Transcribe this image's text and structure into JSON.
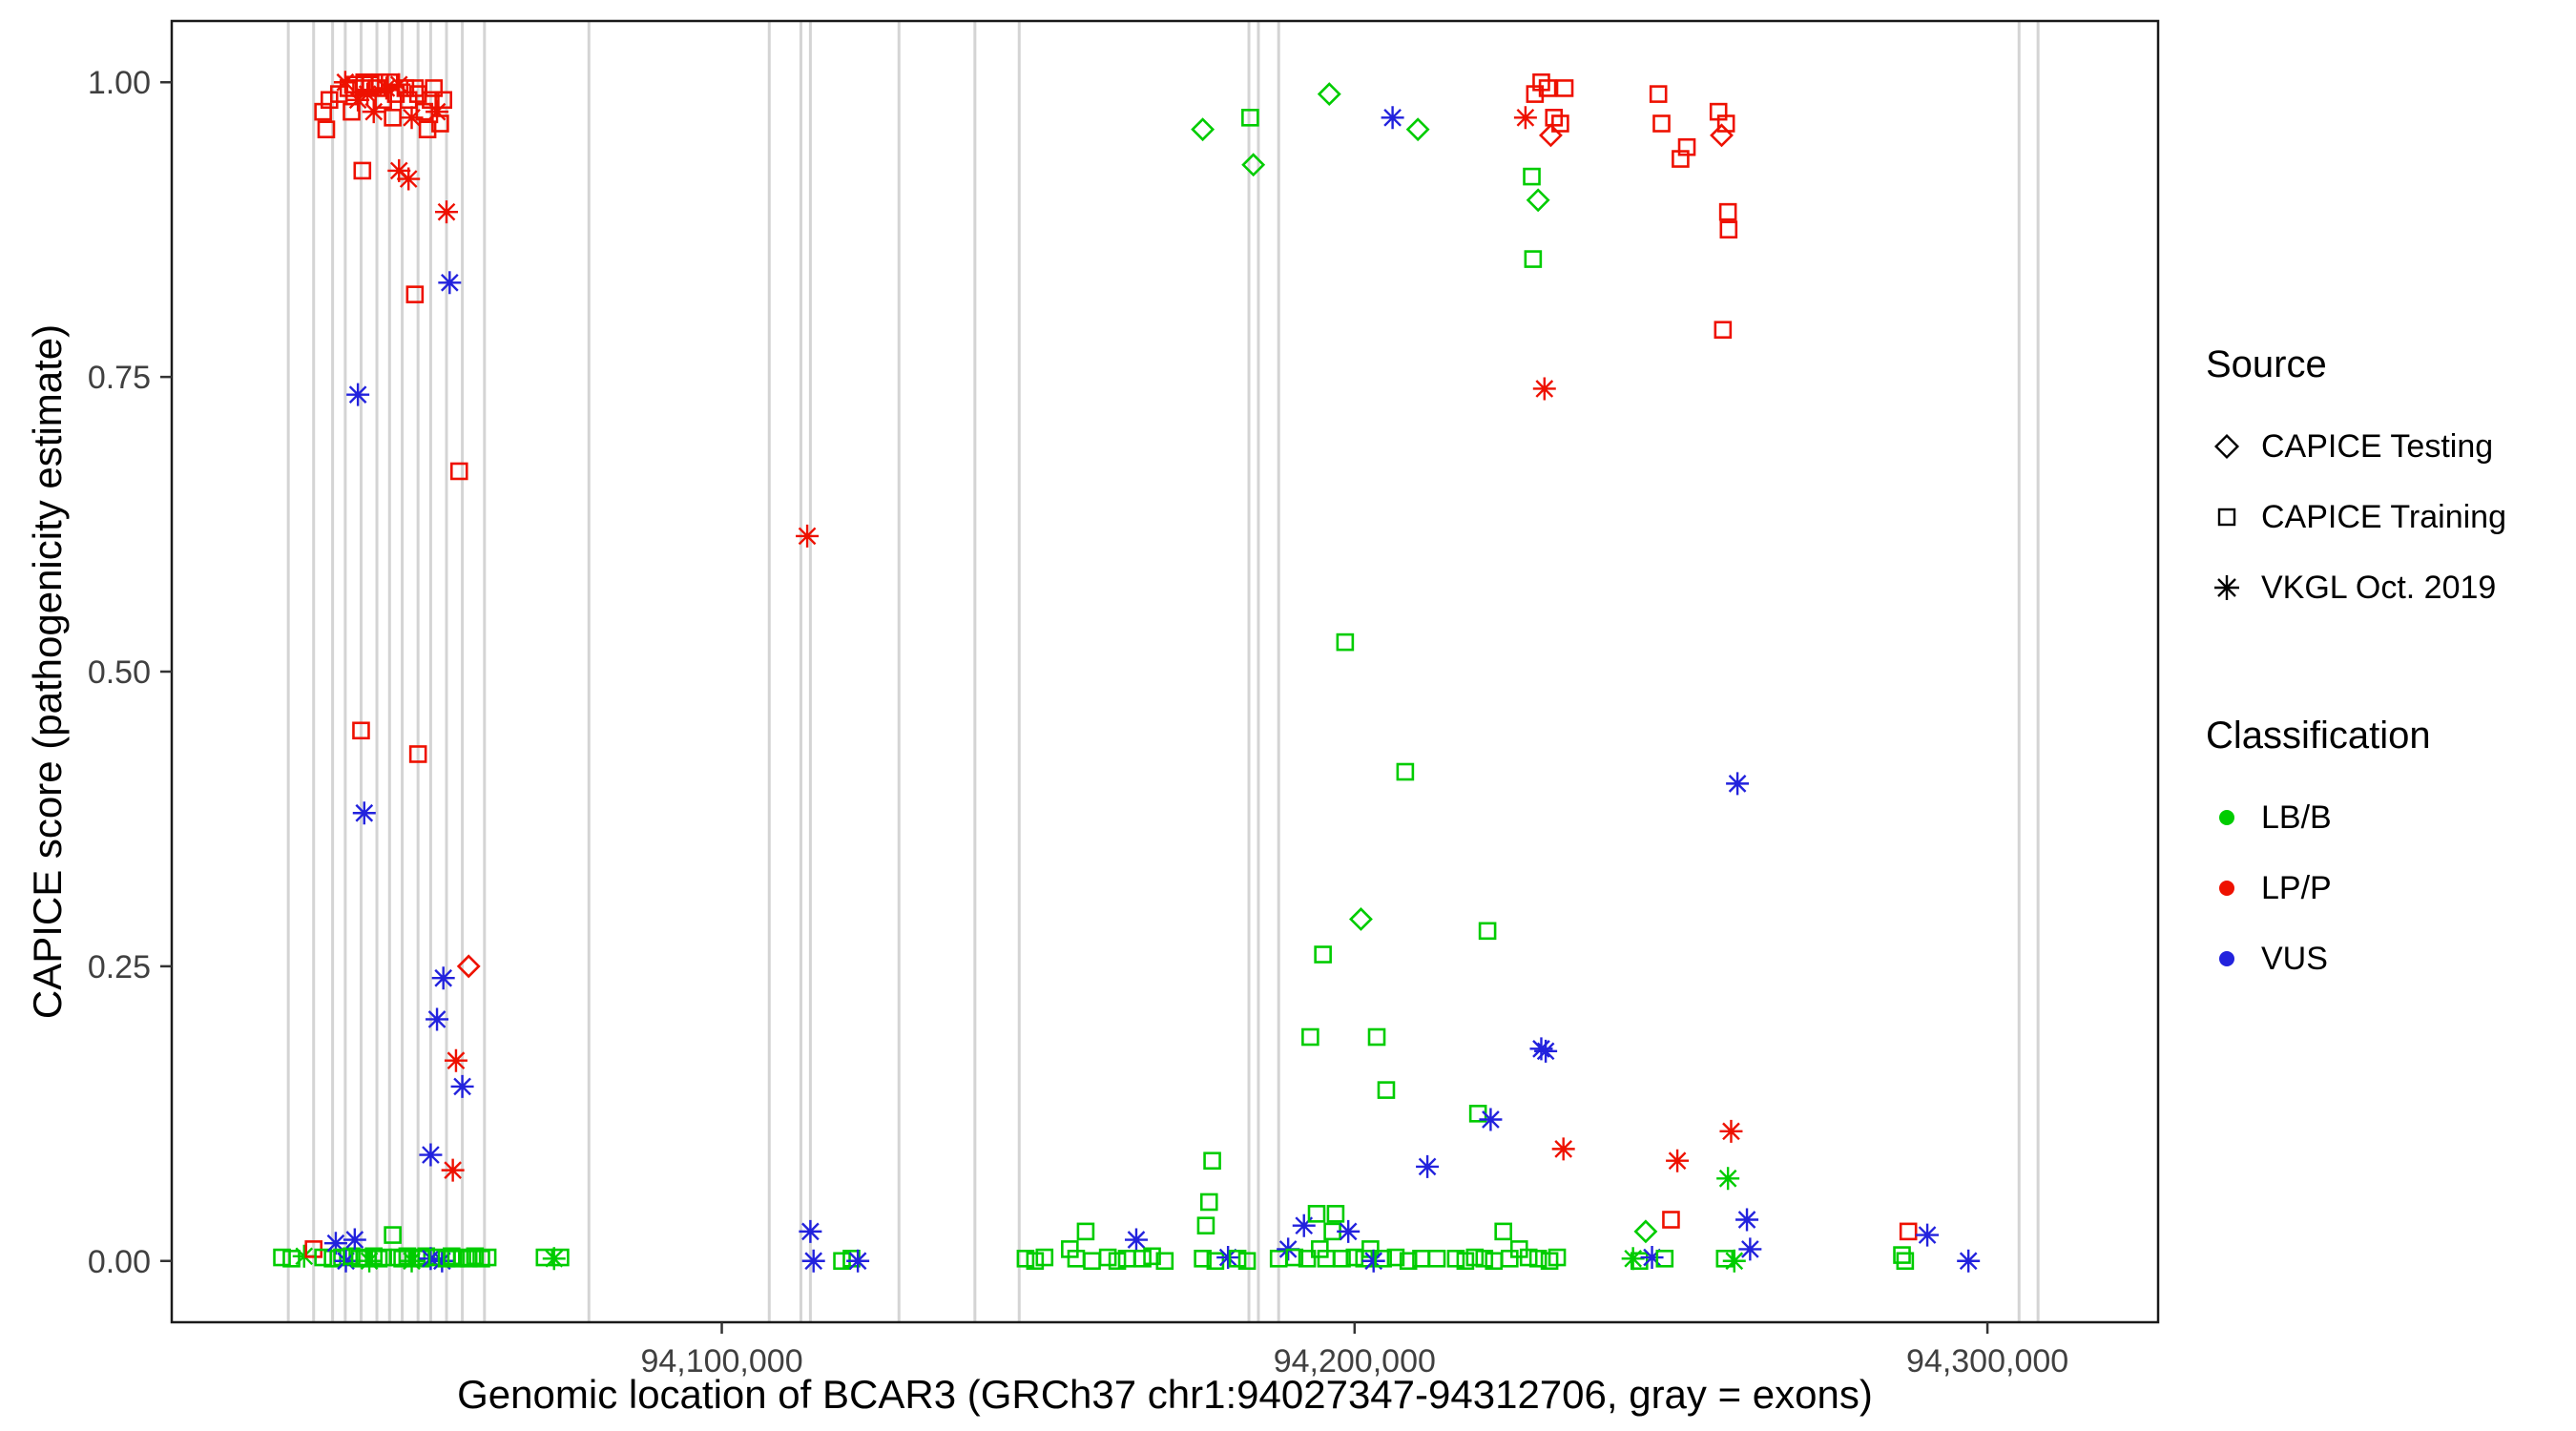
{
  "figure": {
    "x_axis_title": "Genomic location of BCAR3 (GRCh37 chr1:94027347-94312706, gray = exons)",
    "y_axis_title": "CAPICE score (pathogenicity estimate)"
  },
  "legend": {
    "source": {
      "title": "Source",
      "items": [
        "CAPICE Testing",
        "CAPICE Training",
        "VKGL Oct. 2019"
      ]
    },
    "classification": {
      "title": "Classification",
      "items": [
        "LB/B",
        "LP/P",
        "VUS"
      ]
    }
  },
  "colors": {
    "lbb": "#00CC00",
    "lpp": "#EE1100",
    "vus": "#2222DD",
    "exon": "#D4D4D4",
    "tick_text": "#404040",
    "panel_border": "#1a1a1a"
  },
  "chart_data": {
    "type": "scatter",
    "title": "",
    "xlabel": "Genomic location of BCAR3 (GRCh37 chr1:94027347-94312706, gray = exons)",
    "ylabel": "CAPICE score (pathogenicity estimate)",
    "grid": false,
    "legend_position": "right",
    "x_domain": [
      94013079,
      94326974
    ],
    "y_domain": [
      -0.052,
      1.052
    ],
    "x_ticks": [
      {
        "value": 94100000,
        "label": "94,100,000"
      },
      {
        "value": 94200000,
        "label": "94,200,000"
      },
      {
        "value": 94300000,
        "label": "94,300,000"
      }
    ],
    "y_ticks": [
      {
        "value": 0.0,
        "label": "0.00"
      },
      {
        "value": 0.25,
        "label": "0.25"
      },
      {
        "value": 0.5,
        "label": "0.50"
      },
      {
        "value": 0.75,
        "label": "0.75"
      },
      {
        "value": 1.0,
        "label": "1.00"
      }
    ],
    "point_format": "each point is [genomic_position, capice_score, source_code, class_code]",
    "source_codes": {
      "T": "CAPICE Testing",
      "R": "CAPICE Training",
      "V": "VKGL Oct. 2019"
    },
    "source_markers": {
      "CAPICE Testing": "diamond",
      "CAPICE Training": "square",
      "VKGL Oct. 2019": "asterisk"
    },
    "class_codes": {
      "B": "LB/B",
      "P": "LP/P",
      "U": "VUS"
    },
    "class_colors": {
      "LB/B": "#00CC00",
      "LP/P": "#EE1100",
      "VUS": "#2222DD"
    },
    "exons": [
      94031500,
      94035500,
      94038500,
      94040500,
      94043000,
      94045500,
      94047500,
      94049500,
      94052000,
      94054000,
      94056500,
      94059000,
      94062500,
      94079000,
      94107500,
      94112500,
      94114000,
      94128000,
      94140000,
      94147000,
      94183300,
      94184800,
      94188000,
      94305000,
      94308000
    ],
    "points": [
      [
        94037000,
        0.975,
        "R",
        "P"
      ],
      [
        94037500,
        0.96,
        "R",
        "P"
      ],
      [
        94038000,
        0.985,
        "R",
        "P"
      ],
      [
        94039500,
        0.99,
        "R",
        "P"
      ],
      [
        94040500,
        1.0,
        "V",
        "P"
      ],
      [
        94041000,
        0.995,
        "R",
        "P"
      ],
      [
        94041500,
        0.975,
        "R",
        "P"
      ],
      [
        94042000,
        0.998,
        "R",
        "P"
      ],
      [
        94042500,
        0.985,
        "V",
        "P"
      ],
      [
        94043000,
        0.995,
        "R",
        "P"
      ],
      [
        94043500,
        1.0,
        "R",
        "P"
      ],
      [
        94044000,
        0.99,
        "V",
        "P"
      ],
      [
        94044500,
        0.998,
        "R",
        "P"
      ],
      [
        94045000,
        0.975,
        "V",
        "P"
      ],
      [
        94045500,
        0.995,
        "R",
        "P"
      ],
      [
        94046000,
        1.0,
        "R",
        "P"
      ],
      [
        94046500,
        0.985,
        "R",
        "P"
      ],
      [
        94047000,
        0.995,
        "V",
        "P"
      ],
      [
        94047500,
        1.0,
        "R",
        "P"
      ],
      [
        94048000,
        0.97,
        "R",
        "P"
      ],
      [
        94048500,
        0.99,
        "R",
        "P"
      ],
      [
        94049000,
        0.998,
        "V",
        "P"
      ],
      [
        94050000,
        0.995,
        "R",
        "P"
      ],
      [
        94050500,
        0.985,
        "R",
        "P"
      ],
      [
        94051000,
        0.97,
        "V",
        "P"
      ],
      [
        94051500,
        0.995,
        "R",
        "P"
      ],
      [
        94052000,
        0.99,
        "R",
        "P"
      ],
      [
        94053000,
        0.975,
        "R",
        "P"
      ],
      [
        94053500,
        0.96,
        "R",
        "P"
      ],
      [
        94054000,
        0.985,
        "R",
        "P"
      ],
      [
        94054500,
        0.995,
        "R",
        "P"
      ],
      [
        94055000,
        0.975,
        "V",
        "P"
      ],
      [
        94055500,
        0.965,
        "R",
        "P"
      ],
      [
        94056000,
        0.985,
        "R",
        "P"
      ],
      [
        94043200,
        0.925,
        "R",
        "P"
      ],
      [
        94049000,
        0.925,
        "V",
        "P"
      ],
      [
        94050500,
        0.918,
        "V",
        "P"
      ],
      [
        94051500,
        0.82,
        "R",
        "P"
      ],
      [
        94056500,
        0.89,
        "V",
        "P"
      ],
      [
        94042500,
        0.735,
        "V",
        "U"
      ],
      [
        94057000,
        0.83,
        "V",
        "U"
      ],
      [
        94058500,
        0.67,
        "R",
        "P"
      ],
      [
        94043000,
        0.45,
        "R",
        "P"
      ],
      [
        94052000,
        0.43,
        "R",
        "P"
      ],
      [
        94043500,
        0.38,
        "V",
        "U"
      ],
      [
        94060000,
        0.25,
        "T",
        "P"
      ],
      [
        94056000,
        0.24,
        "V",
        "U"
      ],
      [
        94055000,
        0.205,
        "V",
        "U"
      ],
      [
        94058000,
        0.17,
        "V",
        "P"
      ],
      [
        94059000,
        0.148,
        "V",
        "U"
      ],
      [
        94054000,
        0.09,
        "V",
        "U"
      ],
      [
        94057500,
        0.077,
        "V",
        "P"
      ],
      [
        94030500,
        0.003,
        "R",
        "B"
      ],
      [
        94032000,
        0.002,
        "R",
        "B"
      ],
      [
        94034000,
        0.004,
        "V",
        "B"
      ],
      [
        94035500,
        0.01,
        "R",
        "P"
      ],
      [
        94037000,
        0.003,
        "R",
        "B"
      ],
      [
        94038500,
        0.002,
        "R",
        "B"
      ],
      [
        94039000,
        0.015,
        "V",
        "U"
      ],
      [
        94040000,
        0.003,
        "R",
        "B"
      ],
      [
        94040600,
        0.0,
        "V",
        "U"
      ],
      [
        94041500,
        0.004,
        "R",
        "B"
      ],
      [
        94042000,
        0.018,
        "V",
        "U"
      ],
      [
        94042800,
        0.002,
        "R",
        "B"
      ],
      [
        94043500,
        0.003,
        "R",
        "B"
      ],
      [
        94044300,
        0.0,
        "V",
        "B"
      ],
      [
        94045000,
        0.004,
        "R",
        "B"
      ],
      [
        94045800,
        0.002,
        "R",
        "B"
      ],
      [
        94046500,
        0.003,
        "R",
        "B"
      ],
      [
        94048000,
        0.022,
        "R",
        "B"
      ],
      [
        94048800,
        0.003,
        "R",
        "B"
      ],
      [
        94049500,
        0.002,
        "R",
        "B"
      ],
      [
        94050300,
        0.004,
        "R",
        "B"
      ],
      [
        94051000,
        0.0,
        "V",
        "B"
      ],
      [
        94051800,
        0.003,
        "R",
        "B"
      ],
      [
        94052500,
        0.002,
        "R",
        "B"
      ],
      [
        94053300,
        0.004,
        "R",
        "B"
      ],
      [
        94054000,
        0.002,
        "V",
        "U"
      ],
      [
        94055000,
        0.003,
        "R",
        "B"
      ],
      [
        94055800,
        0.0,
        "V",
        "U"
      ],
      [
        94056500,
        0.002,
        "R",
        "B"
      ],
      [
        94057300,
        0.004,
        "R",
        "B"
      ],
      [
        94058000,
        0.002,
        "R",
        "B"
      ],
      [
        94059000,
        0.003,
        "R",
        "B"
      ],
      [
        94060000,
        0.002,
        "R",
        "B"
      ],
      [
        94061000,
        0.004,
        "R",
        "B"
      ],
      [
        94062000,
        0.002,
        "R",
        "B"
      ],
      [
        94063000,
        0.003,
        "R",
        "B"
      ],
      [
        94072000,
        0.003,
        "R",
        "B"
      ],
      [
        94073500,
        0.002,
        "V",
        "B"
      ],
      [
        94074500,
        0.003,
        "R",
        "B"
      ],
      [
        94113500,
        0.615,
        "V",
        "P"
      ],
      [
        94114000,
        0.025,
        "V",
        "U"
      ],
      [
        94114500,
        0.0,
        "V",
        "U"
      ],
      [
        94119000,
        0.0,
        "R",
        "B"
      ],
      [
        94120500,
        0.002,
        "R",
        "B"
      ],
      [
        94121500,
        0.0,
        "V",
        "U"
      ],
      [
        94148000,
        0.002,
        "R",
        "B"
      ],
      [
        94149500,
        0.0,
        "R",
        "B"
      ],
      [
        94151000,
        0.003,
        "R",
        "B"
      ],
      [
        94155000,
        0.01,
        "R",
        "B"
      ],
      [
        94156000,
        0.002,
        "R",
        "B"
      ],
      [
        94157500,
        0.025,
        "R",
        "B"
      ],
      [
        94158500,
        0.0,
        "R",
        "B"
      ],
      [
        94161000,
        0.003,
        "R",
        "B"
      ],
      [
        94162500,
        0.0,
        "R",
        "B"
      ],
      [
        94164000,
        0.002,
        "R",
        "B"
      ],
      [
        94165500,
        0.018,
        "V",
        "U"
      ],
      [
        94166500,
        0.002,
        "R",
        "B"
      ],
      [
        94168000,
        0.004,
        "R",
        "B"
      ],
      [
        94170000,
        0.0,
        "R",
        "B"
      ],
      [
        94176000,
        0.96,
        "T",
        "B"
      ],
      [
        94183500,
        0.97,
        "R",
        "B"
      ],
      [
        94184000,
        0.93,
        "T",
        "B"
      ],
      [
        94177500,
        0.085,
        "R",
        "B"
      ],
      [
        94177000,
        0.05,
        "R",
        "B"
      ],
      [
        94176500,
        0.03,
        "R",
        "B"
      ],
      [
        94176000,
        0.002,
        "R",
        "B"
      ],
      [
        94178000,
        0.0,
        "R",
        "B"
      ],
      [
        94180000,
        0.003,
        "V",
        "U"
      ],
      [
        94181500,
        0.002,
        "R",
        "B"
      ],
      [
        94183000,
        0.0,
        "R",
        "B"
      ],
      [
        94196000,
        0.99,
        "T",
        "B"
      ],
      [
        94198500,
        0.525,
        "R",
        "B"
      ],
      [
        94195000,
        0.26,
        "R",
        "B"
      ],
      [
        94193000,
        0.19,
        "R",
        "B"
      ],
      [
        94201000,
        0.29,
        "T",
        "B"
      ],
      [
        94203500,
        0.19,
        "R",
        "B"
      ],
      [
        94205000,
        0.145,
        "R",
        "B"
      ],
      [
        94208000,
        0.415,
        "R",
        "B"
      ],
      [
        94206000,
        0.97,
        "V",
        "U"
      ],
      [
        94210000,
        0.96,
        "T",
        "B"
      ],
      [
        94211500,
        0.08,
        "V",
        "U"
      ],
      [
        94188000,
        0.002,
        "R",
        "B"
      ],
      [
        94189500,
        0.01,
        "V",
        "U"
      ],
      [
        94190500,
        0.003,
        "R",
        "B"
      ],
      [
        94192000,
        0.03,
        "V",
        "U"
      ],
      [
        94192500,
        0.002,
        "R",
        "B"
      ],
      [
        94194000,
        0.04,
        "R",
        "B"
      ],
      [
        94194500,
        0.01,
        "R",
        "B"
      ],
      [
        94195500,
        0.002,
        "R",
        "B"
      ],
      [
        94196500,
        0.025,
        "R",
        "B"
      ],
      [
        94197000,
        0.04,
        "R",
        "B"
      ],
      [
        94198000,
        0.002,
        "R",
        "B"
      ],
      [
        94199000,
        0.025,
        "V",
        "U"
      ],
      [
        94200000,
        0.003,
        "R",
        "B"
      ],
      [
        94201500,
        0.002,
        "R",
        "B"
      ],
      [
        94202500,
        0.01,
        "R",
        "B"
      ],
      [
        94203000,
        0.0,
        "V",
        "U"
      ],
      [
        94204500,
        0.002,
        "R",
        "B"
      ],
      [
        94206500,
        0.003,
        "R",
        "B"
      ],
      [
        94208500,
        0.0,
        "R",
        "B"
      ],
      [
        94210500,
        0.002,
        "R",
        "B"
      ],
      [
        94213000,
        0.002,
        "R",
        "B"
      ],
      [
        94219500,
        0.125,
        "R",
        "B"
      ],
      [
        94221500,
        0.12,
        "V",
        "U"
      ],
      [
        94221000,
        0.28,
        "R",
        "B"
      ],
      [
        94229500,
        0.18,
        "V",
        "U"
      ],
      [
        94230200,
        0.178,
        "V",
        "U"
      ],
      [
        94233000,
        0.095,
        "V",
        "P"
      ],
      [
        94230000,
        0.74,
        "V",
        "P"
      ],
      [
        94227000,
        0.97,
        "V",
        "P"
      ],
      [
        94228500,
        0.99,
        "R",
        "P"
      ],
      [
        94229500,
        1.0,
        "R",
        "P"
      ],
      [
        94230500,
        0.995,
        "R",
        "P"
      ],
      [
        94231000,
        0.955,
        "T",
        "P"
      ],
      [
        94231500,
        0.97,
        "R",
        "P"
      ],
      [
        94232500,
        0.965,
        "R",
        "P"
      ],
      [
        94233200,
        0.995,
        "R",
        "P"
      ],
      [
        94228000,
        0.92,
        "R",
        "B"
      ],
      [
        94229000,
        0.9,
        "T",
        "B"
      ],
      [
        94228200,
        0.85,
        "R",
        "B"
      ],
      [
        94216000,
        0.002,
        "R",
        "B"
      ],
      [
        94217500,
        0.0,
        "R",
        "B"
      ],
      [
        94219000,
        0.003,
        "R",
        "B"
      ],
      [
        94220500,
        0.002,
        "R",
        "B"
      ],
      [
        94222000,
        0.0,
        "R",
        "B"
      ],
      [
        94223500,
        0.025,
        "R",
        "B"
      ],
      [
        94224500,
        0.002,
        "R",
        "B"
      ],
      [
        94226000,
        0.01,
        "R",
        "B"
      ],
      [
        94227500,
        0.003,
        "R",
        "B"
      ],
      [
        94229000,
        0.002,
        "R",
        "B"
      ],
      [
        94230800,
        0.0,
        "R",
        "B"
      ],
      [
        94232000,
        0.003,
        "R",
        "B"
      ],
      [
        94246000,
        0.025,
        "T",
        "B"
      ],
      [
        94244000,
        0.002,
        "V",
        "B"
      ],
      [
        94245000,
        0.0,
        "R",
        "B"
      ],
      [
        94247000,
        0.003,
        "V",
        "U"
      ],
      [
        94248000,
        0.99,
        "R",
        "P"
      ],
      [
        94248500,
        0.965,
        "R",
        "P"
      ],
      [
        94251500,
        0.935,
        "R",
        "P"
      ],
      [
        94252500,
        0.945,
        "R",
        "P"
      ],
      [
        94251000,
        0.085,
        "V",
        "P"
      ],
      [
        94250000,
        0.035,
        "R",
        "P"
      ],
      [
        94249000,
        0.002,
        "R",
        "B"
      ],
      [
        94257500,
        0.975,
        "R",
        "P"
      ],
      [
        94258000,
        0.955,
        "T",
        "P"
      ],
      [
        94258700,
        0.965,
        "R",
        "P"
      ],
      [
        94259000,
        0.89,
        "R",
        "P"
      ],
      [
        94259100,
        0.875,
        "R",
        "P"
      ],
      [
        94258200,
        0.79,
        "R",
        "P"
      ],
      [
        94260500,
        0.405,
        "V",
        "U"
      ],
      [
        94259500,
        0.11,
        "V",
        "P"
      ],
      [
        94259000,
        0.07,
        "V",
        "B"
      ],
      [
        94262000,
        0.035,
        "V",
        "U"
      ],
      [
        94262500,
        0.01,
        "V",
        "U"
      ],
      [
        94258500,
        0.002,
        "R",
        "B"
      ],
      [
        94260000,
        0.0,
        "V",
        "B"
      ],
      [
        94287500,
        0.025,
        "R",
        "P"
      ],
      [
        94286500,
        0.005,
        "R",
        "B"
      ],
      [
        94287000,
        0.0,
        "R",
        "B"
      ],
      [
        94290500,
        0.022,
        "V",
        "U"
      ],
      [
        94297000,
        0.0,
        "V",
        "U"
      ]
    ]
  }
}
